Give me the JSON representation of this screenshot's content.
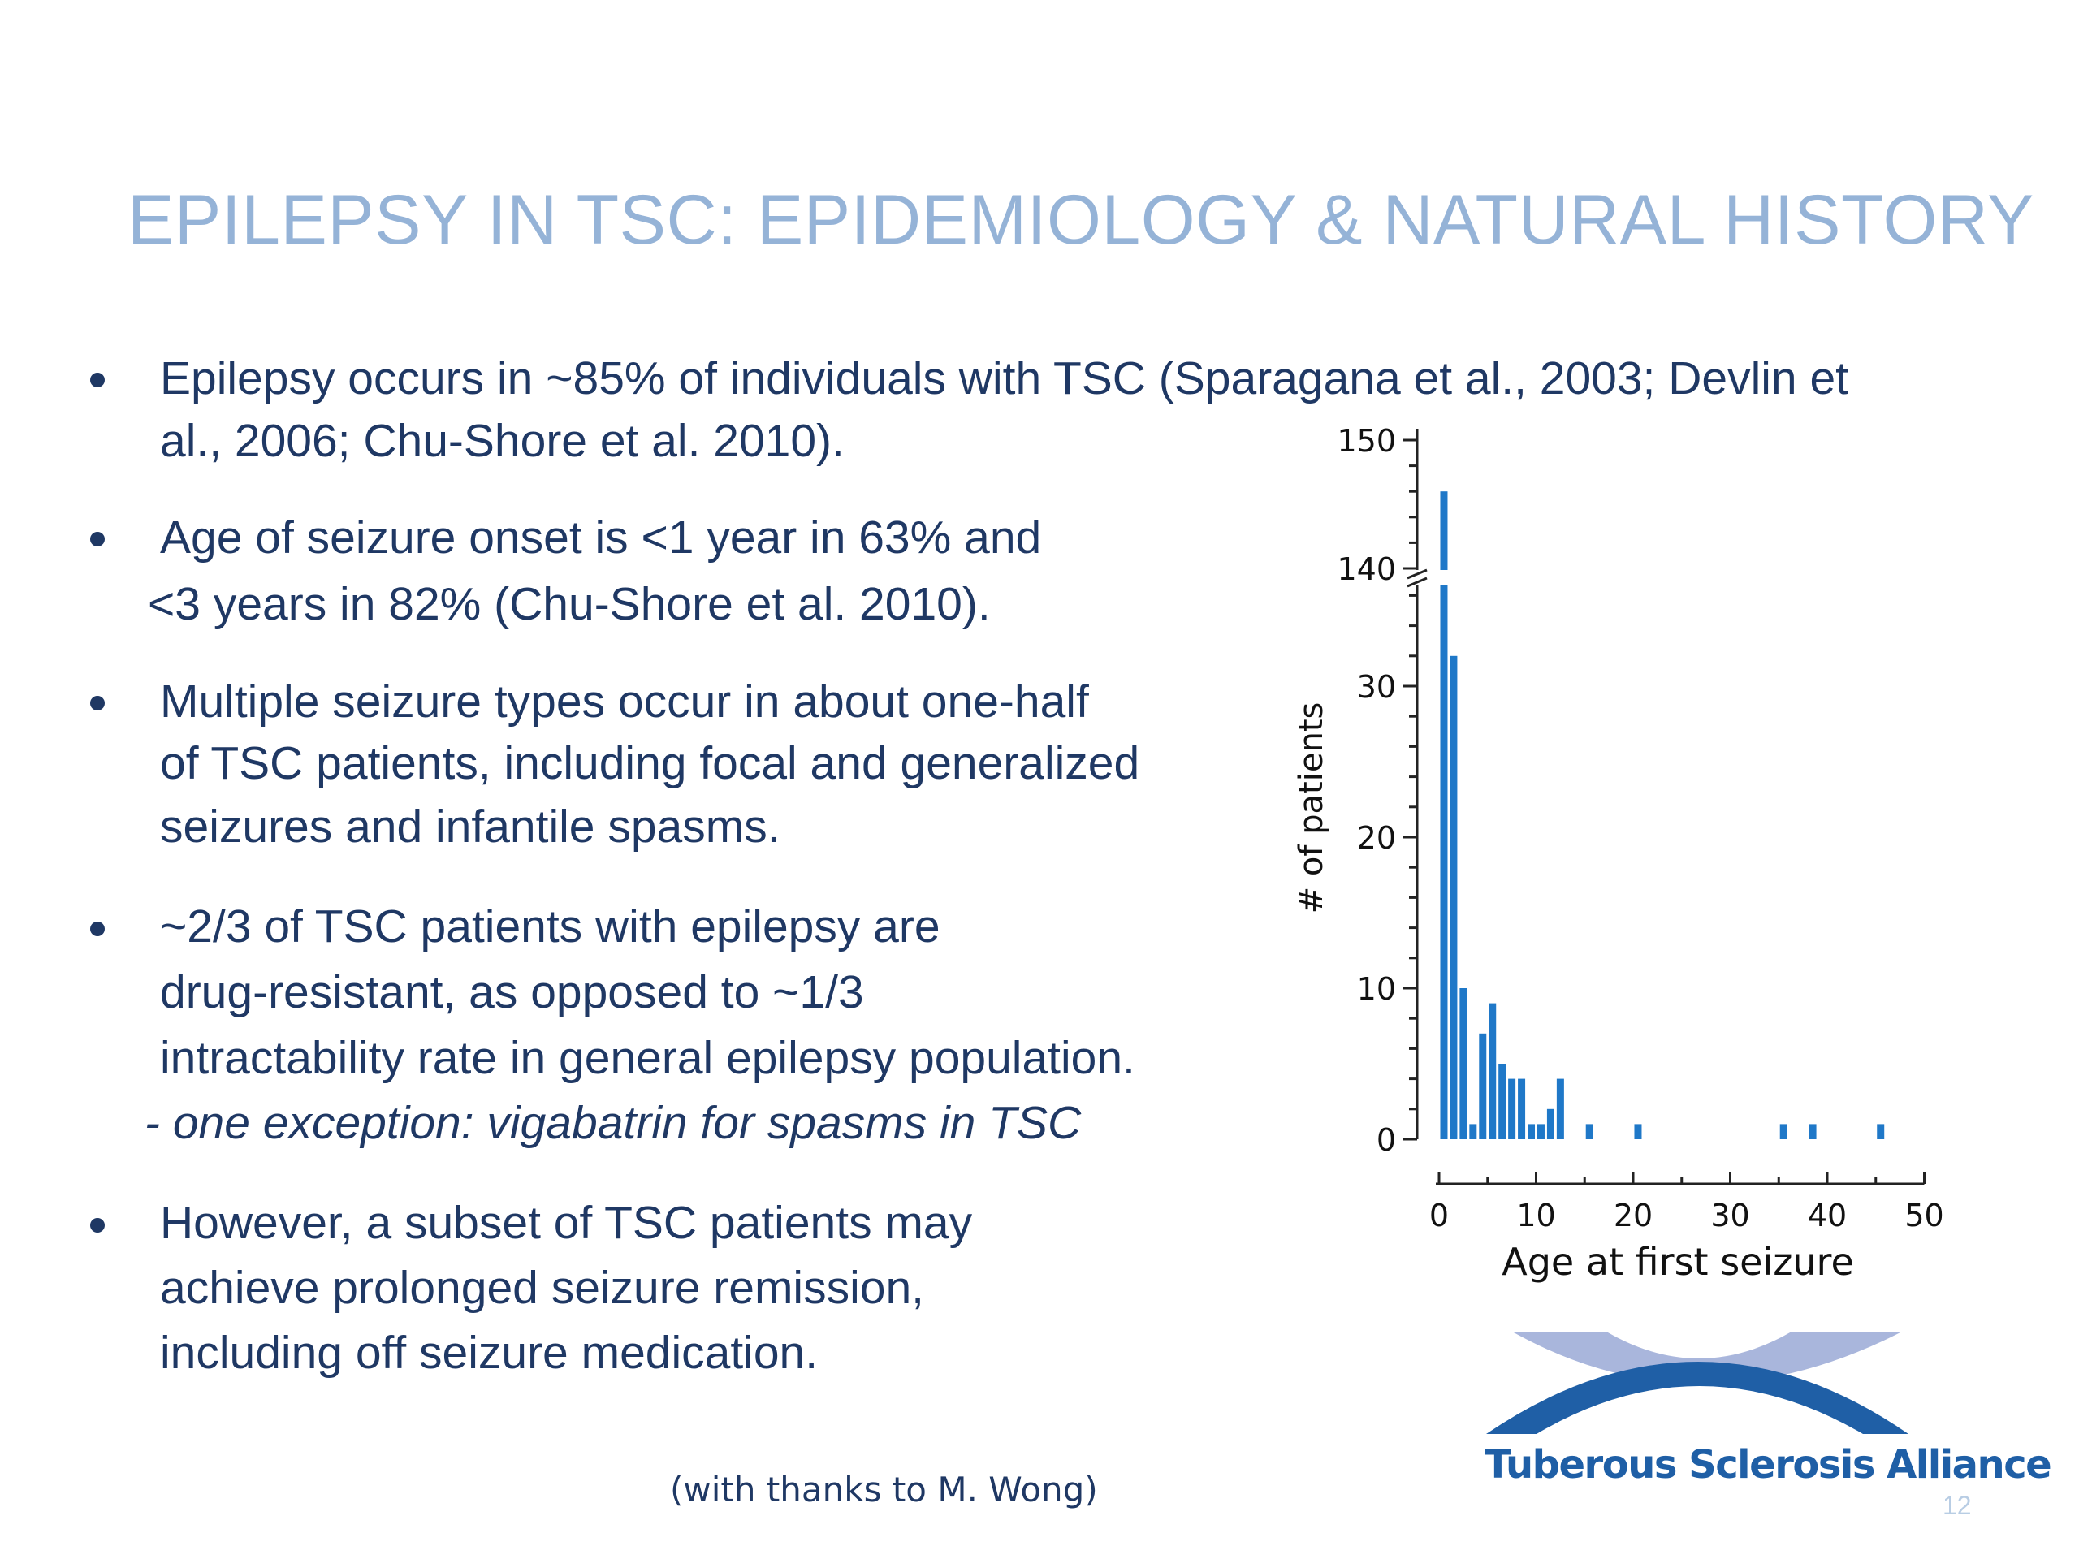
{
  "slide": {
    "title": "EPILEPSY IN TSC: EPIDEMIOLOGY & NATURAL HISTORY",
    "page_number": "12",
    "acknowledgement": "(with thanks to M. Wong)",
    "logo_text": "Tuberous Sclerosis Alliance",
    "colors": {
      "title": "#95b3d7",
      "body_text": "#1f3864",
      "bar": "#1f78c8",
      "logo_dark": "#1f5fa6",
      "logo_light": "#a9b6dc"
    }
  },
  "bullets": [
    {
      "lines": [
        "Epilepsy occurs in ~85% of individuals with TSC (Sparagana et al., 2003; Devlin et",
        "al., 2006; Chu-Shore et al. 2010)."
      ]
    },
    {
      "lines": [
        "Age of seizure onset is <1 year in 63% and",
        "<3 years in 82% (Chu-Shore et al. 2010)."
      ]
    },
    {
      "lines": [
        "Multiple seizure types occur in about one-half",
        "of TSC patients, including focal and generalized",
        "seizures and infantile spasms."
      ]
    },
    {
      "lines": [
        "~2/3 of TSC patients with epilepsy are",
        "drug-resistant, as opposed to ~1/3",
        "intractability rate in general epilepsy population."
      ],
      "sub": "- one exception: vigabatrin for spasms in TSC"
    },
    {
      "lines": [
        "However, a subset of TSC patients may",
        "achieve prolonged seizure remission,",
        "including off seizure medication."
      ]
    }
  ],
  "chart_data": {
    "type": "bar",
    "xlabel": "Age at first seizure",
    "ylabel": "# of patients",
    "xlim": [
      0,
      50
    ],
    "x_ticks": [
      "0",
      "10",
      "20",
      "30",
      "40",
      "50"
    ],
    "y_ticks_lower": [
      "0",
      "10",
      "20",
      "30"
    ],
    "y_ticks_upper": [
      "140",
      "150"
    ],
    "y_axis_break": [
      38,
      140
    ],
    "ylim": [
      0,
      150
    ],
    "grid": false,
    "legend": "none",
    "x": [
      0.5,
      1.5,
      2.5,
      3.5,
      4.5,
      5.5,
      6.5,
      7.5,
      8.5,
      9.5,
      10.5,
      11.5,
      12.5,
      15.5,
      20.5,
      35.5,
      38.5,
      45.5
    ],
    "values": [
      146,
      32,
      10,
      1,
      7,
      9,
      5,
      4,
      4,
      1,
      1,
      2,
      4,
      1,
      1,
      1,
      1,
      1
    ]
  }
}
